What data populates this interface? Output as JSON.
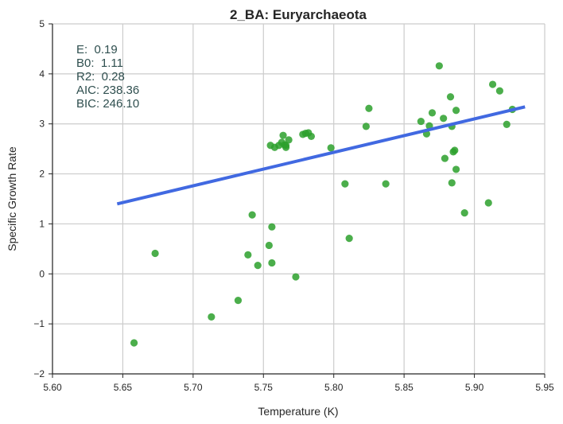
{
  "chart_data": {
    "type": "scatter",
    "title": "2_BA: Euryarchaeota",
    "xlabel": "Temperature (K)",
    "ylabel": "Specific Growth Rate",
    "xlim": [
      5.6,
      5.95
    ],
    "ylim": [
      -2,
      5
    ],
    "xticks": [
      5.6,
      5.65,
      5.7,
      5.75,
      5.8,
      5.85,
      5.9,
      5.95
    ],
    "xtick_labels": [
      "5.60",
      "5.65",
      "5.70",
      "5.75",
      "5.80",
      "5.85",
      "5.90",
      "5.95"
    ],
    "yticks": [
      -2,
      -1,
      0,
      1,
      2,
      3,
      4,
      5
    ],
    "ytick_labels": [
      "−2",
      "−1",
      "0",
      "1",
      "2",
      "3",
      "4",
      "5"
    ],
    "grid": true,
    "point_color": "#2ca02c",
    "line_color": "#4169e1",
    "annotations": [
      "E:  0.19",
      "B0:  1.11",
      "R2:  0.28",
      "AIC: 238.36",
      "BIC: 246.10"
    ],
    "series": [
      {
        "type": "scatter",
        "x": [
          5.658,
          5.673,
          5.713,
          5.732,
          5.739,
          5.742,
          5.746,
          5.754,
          5.756,
          5.756,
          5.755,
          5.758,
          5.761,
          5.763,
          5.764,
          5.765,
          5.766,
          5.766,
          5.768,
          5.773,
          5.778,
          5.78,
          5.782,
          5.784,
          5.798,
          5.808,
          5.811,
          5.823,
          5.825,
          5.837,
          5.862,
          5.866,
          5.868,
          5.87,
          5.875,
          5.878,
          5.879,
          5.883,
          5.884,
          5.884,
          5.885,
          5.886,
          5.887,
          5.887,
          5.893,
          5.91,
          5.913,
          5.918,
          5.923,
          5.927
        ],
        "y": [
          -1.38,
          0.41,
          -0.86,
          -0.53,
          0.38,
          1.18,
          0.17,
          0.57,
          0.22,
          0.94,
          2.57,
          2.53,
          2.57,
          2.63,
          2.77,
          2.58,
          2.53,
          2.57,
          2.68,
          -0.06,
          2.79,
          2.81,
          2.82,
          2.75,
          2.52,
          1.8,
          0.71,
          2.95,
          3.31,
          1.8,
          3.05,
          2.8,
          2.96,
          3.22,
          4.16,
          3.11,
          2.31,
          3.54,
          2.95,
          1.82,
          2.44,
          2.47,
          3.27,
          2.09,
          1.22,
          1.42,
          3.79,
          3.66,
          2.99,
          3.29
        ]
      },
      {
        "type": "line",
        "x": [
          5.646,
          5.936
        ],
        "y": [
          1.4,
          3.34
        ]
      }
    ]
  }
}
